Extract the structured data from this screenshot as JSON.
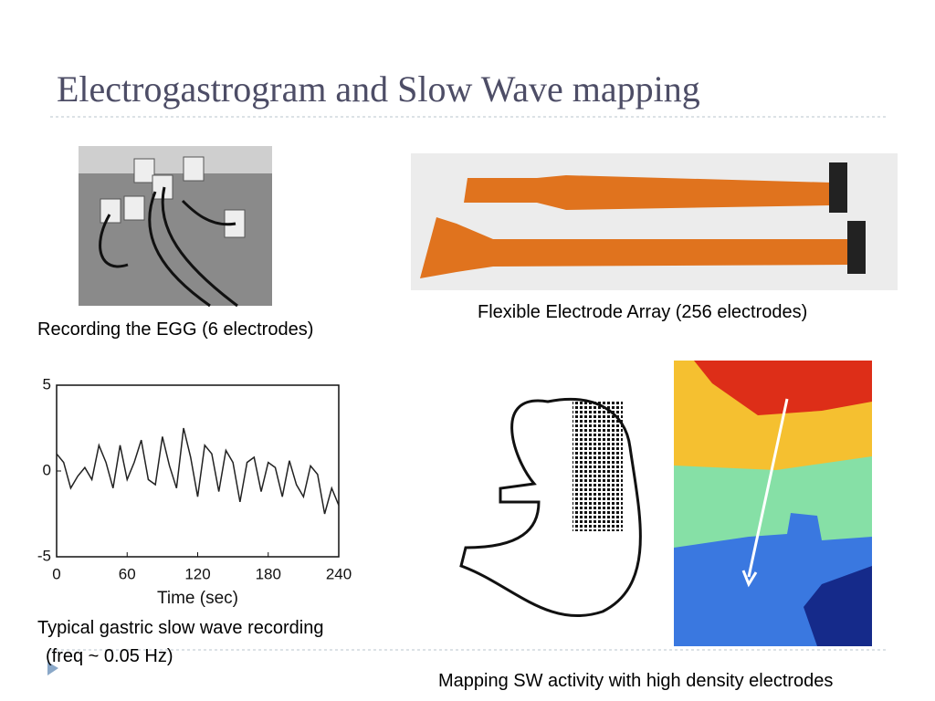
{
  "header": {
    "title": "Electrogastrogram and Slow Wave mapping"
  },
  "captions": {
    "egg": "Recording the EGG (6 electrodes)",
    "array": "Flexible Electrode Array (256 electrodes)",
    "recording": [
      "Typical gastric slow wave recording",
      "(freq ~ 0.05 Hz)"
    ],
    "mapping": "Mapping SW activity with high density electrodes"
  },
  "chart_data": {
    "type": "line",
    "x_label": "Time (sec)",
    "x": [
      0,
      6,
      12,
      18,
      24,
      30,
      36,
      42,
      48,
      54,
      60,
      66,
      72,
      78,
      84,
      90,
      96,
      102,
      108,
      114,
      120,
      126,
      132,
      138,
      144,
      150,
      156,
      162,
      168,
      174,
      180,
      186,
      192,
      198,
      204,
      210,
      216,
      222,
      228,
      234,
      240
    ],
    "series": [
      {
        "color": "#222222",
        "values": [
          1,
          0.5,
          -1,
          -0.3,
          0.2,
          -0.5,
          1.5,
          0.5,
          -1,
          1.5,
          -0.5,
          0.5,
          1.8,
          -0.5,
          -0.8,
          2,
          0.3,
          -1,
          2.5,
          0.8,
          -1.5,
          1.5,
          1,
          -1.2,
          1.2,
          0.5,
          -1.8,
          0.5,
          0.8,
          -1.2,
          0.5,
          0.2,
          -1.5,
          0.6,
          -0.8,
          -1.5,
          0.3,
          -0.2,
          -2.5,
          -1,
          -2
        ]
      }
    ],
    "xlim": [
      0,
      240
    ],
    "ylim": [
      -5,
      5
    ],
    "xticks": [
      0,
      60,
      120,
      180,
      240
    ],
    "yticks": [
      -5,
      0,
      5
    ]
  }
}
